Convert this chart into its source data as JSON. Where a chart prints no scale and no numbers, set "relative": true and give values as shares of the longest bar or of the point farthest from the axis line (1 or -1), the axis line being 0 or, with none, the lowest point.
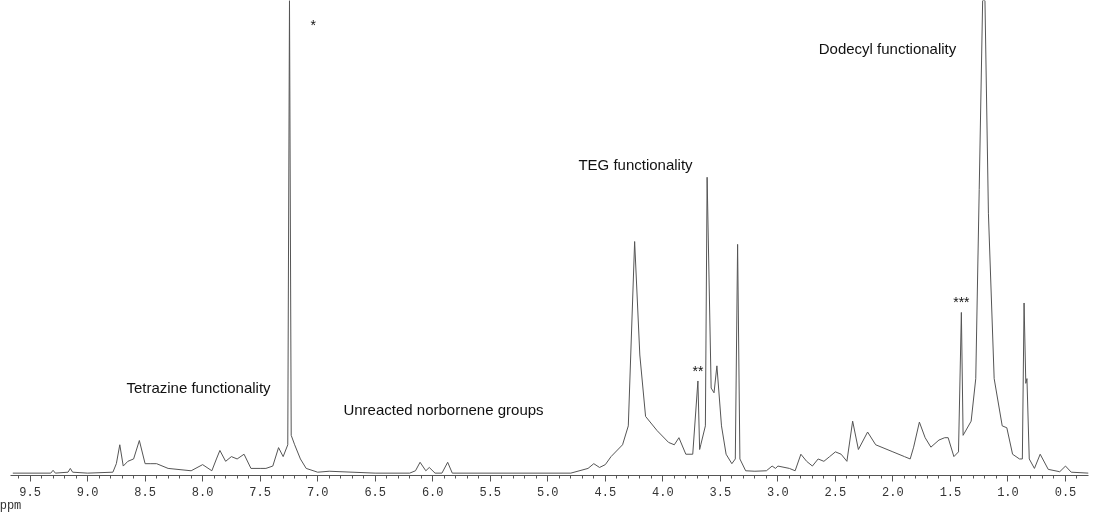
{
  "chart_data": {
    "type": "line",
    "relative": true,
    "xlabel": "ppm",
    "xlim": [
      9.67,
      0.3
    ],
    "xticks": [
      9.5,
      {
        "value": 9.0,
        "label": "9.0"
      },
      8.5,
      {
        "value": 8.0,
        "label": "8.0"
      },
      7.5,
      {
        "value": 7.0,
        "label": "7.0"
      },
      6.5,
      {
        "value": 6.0,
        "label": "6.0"
      },
      5.5,
      {
        "value": 5.0,
        "label": "5.0"
      },
      4.5,
      {
        "value": 4.0,
        "label": "4.0"
      },
      3.5,
      {
        "value": 3.0,
        "label": "3.0"
      },
      2.5,
      {
        "value": 2.0,
        "label": "2.0"
      },
      1.5,
      {
        "value": 1.0,
        "label": "1.0"
      },
      0.5
    ],
    "grid": false,
    "marker": "none",
    "line_style": "solid",
    "series": [
      {
        "color": "#555555",
        "x": [
          9.65,
          9.32,
          9.3,
          9.28,
          9.17,
          9.15,
          9.13,
          9.0,
          8.78,
          8.75,
          8.72,
          8.69,
          8.65,
          8.6,
          8.55,
          8.5,
          8.45,
          8.4,
          8.3,
          8.1,
          8.0,
          7.92,
          7.88,
          7.85,
          7.8,
          7.75,
          7.7,
          7.64,
          7.58,
          7.5,
          7.45,
          7.39,
          7.34,
          7.3,
          7.26,
          7.245,
          7.23,
          7.2,
          7.15,
          7.1,
          7.0,
          6.9,
          6.5,
          6.2,
          6.15,
          6.11,
          6.06,
          6.03,
          5.98,
          5.92,
          5.87,
          5.83,
          4.8,
          4.65,
          4.6,
          4.55,
          4.5,
          4.45,
          4.35,
          4.3,
          4.245,
          4.2,
          4.15,
          4.05,
          3.95,
          3.9,
          3.86,
          3.8,
          3.74,
          3.695,
          3.68,
          3.67,
          3.63,
          3.615,
          3.58,
          3.555,
          3.53,
          3.49,
          3.45,
          3.4,
          3.37,
          3.35,
          3.33,
          3.28,
          3.2,
          3.1,
          3.05,
          3.02,
          3.0,
          2.9,
          2.85,
          2.8,
          2.75,
          2.7,
          2.65,
          2.6,
          2.55,
          2.5,
          2.45,
          2.4,
          2.35,
          2.3,
          2.22,
          2.15,
          2.0,
          1.9,
          1.85,
          1.82,
          1.77,
          1.72,
          1.67,
          1.6,
          1.55,
          1.52,
          1.47,
          1.43,
          1.405,
          1.39,
          1.32,
          1.28,
          1.25,
          1.22,
          1.2,
          1.17,
          1.12,
          1.05,
          1.01,
          0.96,
          0.9,
          0.875,
          0.86,
          0.845,
          0.835,
          0.815,
          0.77,
          0.72,
          0.65,
          0.55,
          0.5,
          0.45,
          0.3
        ],
        "values": [
          0.0,
          0.0,
          0.006,
          0.0,
          0.002,
          0.01,
          0.002,
          0.0,
          0.002,
          0.02,
          0.06,
          0.015,
          0.025,
          0.03,
          0.069,
          0.02,
          0.02,
          0.02,
          0.01,
          0.005,
          0.018,
          0.005,
          0.03,
          0.048,
          0.025,
          0.035,
          0.03,
          0.04,
          0.01,
          0.01,
          0.01,
          0.015,
          0.054,
          0.035,
          0.06,
          1.0,
          0.08,
          0.06,
          0.03,
          0.01,
          0.002,
          0.004,
          0.0,
          0.0,
          0.005,
          0.023,
          0.005,
          0.012,
          0.0,
          0.0,
          0.023,
          0.0,
          0.0,
          0.01,
          0.02,
          0.012,
          0.018,
          0.035,
          0.06,
          0.1,
          0.49,
          0.25,
          0.12,
          0.09,
          0.065,
          0.06,
          0.075,
          0.04,
          0.04,
          0.195,
          0.05,
          0.06,
          0.1,
          0.626,
          0.18,
          0.17,
          0.227,
          0.1,
          0.04,
          0.02,
          0.03,
          0.484,
          0.03,
          0.005,
          0.004,
          0.005,
          0.015,
          0.01,
          0.015,
          0.01,
          0.005,
          0.04,
          0.025,
          0.015,
          0.03,
          0.025,
          0.035,
          0.045,
          0.04,
          0.025,
          0.11,
          0.05,
          0.087,
          0.06,
          0.045,
          0.035,
          0.03,
          0.055,
          0.108,
          0.075,
          0.055,
          0.07,
          0.075,
          0.075,
          0.035,
          0.045,
          0.34,
          0.08,
          0.11,
          0.2,
          0.6,
          1.0,
          1.0,
          0.55,
          0.2,
          0.1,
          0.096,
          0.04,
          0.03,
          0.03,
          0.36,
          0.19,
          0.2,
          0.03,
          0.01,
          0.04,
          0.008,
          0.003,
          0.015,
          0.002,
          0.0
        ]
      }
    ],
    "annotations": [
      "*",
      "Tetrazine functionality",
      "Unreacted norbornene groups",
      "TEG functionality",
      {
        "text": "**",
        "x": 3.695,
        "y": 0.195
      },
      {
        "text": "***",
        "x": 1.405,
        "y": 0.34
      },
      "Dodecyl functionality"
    ]
  }
}
